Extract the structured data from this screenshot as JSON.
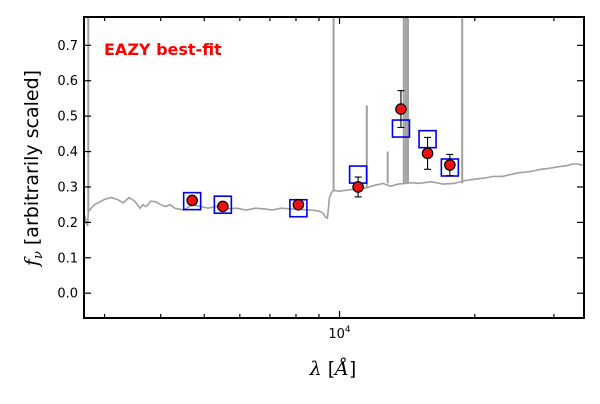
{
  "chart_data": {
    "type": "scatter",
    "title": "EAZY best-fit",
    "title_color": "#ff0000",
    "xlabel": "λ [Å]",
    "ylabel": "f_ν [arbitrarily scaled]",
    "x_scale": "log",
    "xlim": [
      2700,
      35000
    ],
    "ylim": [
      -0.07,
      0.78
    ],
    "yticks": [
      0.0,
      0.1,
      0.2,
      0.3,
      0.4,
      0.5,
      0.6,
      0.7
    ],
    "ytick_labels": [
      "0.0",
      "0.1",
      "0.2",
      "0.3",
      "0.4",
      "0.5",
      "0.6",
      "0.7"
    ],
    "xtick_label": {
      "base": "10",
      "exponent": "4",
      "value": 10000
    },
    "x_minor_ticks": [
      3000,
      4000,
      5000,
      6000,
      7000,
      8000,
      9000,
      20000,
      30000
    ],
    "colors": {
      "sed": "#a0a0a0",
      "model": "#0000ee",
      "obs_fill": "#ee1111",
      "obs_edge": "#000000",
      "errorbar": "#000000"
    },
    "series": [
      {
        "name": "best-fit SED",
        "kind": "line",
        "x": [
          2710,
          2730,
          2750,
          2760,
          2800,
          2850,
          2900,
          2950,
          3000,
          3100,
          3200,
          3300,
          3400,
          3500,
          3600,
          3650,
          3700,
          3750,
          3800,
          3900,
          4000,
          4100,
          4200,
          4300,
          4500,
          4700,
          4900,
          5100,
          5300,
          5600,
          5900,
          6200,
          6500,
          6800,
          7100,
          7400,
          7800,
          8200,
          8600,
          8900,
          9100,
          9200,
          9300,
          9400,
          9500,
          9600,
          9700,
          10000,
          10500,
          11000,
          11500,
          12000,
          12500,
          13000,
          13500,
          14000,
          14500,
          15000,
          16000,
          17000,
          18000,
          19000,
          20000,
          21000,
          22000,
          23000,
          24000,
          25000,
          26000,
          27000,
          28000,
          29000,
          30000,
          31000,
          32000,
          33000,
          34000,
          35000
        ],
        "y": [
          0.22,
          0.2,
          0.19,
          0.23,
          0.24,
          0.25,
          0.255,
          0.26,
          0.265,
          0.27,
          0.265,
          0.255,
          0.27,
          0.26,
          0.24,
          0.25,
          0.245,
          0.25,
          0.26,
          0.258,
          0.25,
          0.245,
          0.25,
          0.24,
          0.235,
          0.25,
          0.245,
          0.24,
          0.245,
          0.238,
          0.24,
          0.235,
          0.24,
          0.238,
          0.235,
          0.24,
          0.238,
          0.236,
          0.235,
          0.233,
          0.23,
          0.225,
          0.215,
          0.212,
          0.27,
          0.285,
          0.29,
          0.288,
          0.292,
          0.295,
          0.298,
          0.305,
          0.31,
          0.302,
          0.308,
          0.31,
          0.312,
          0.31,
          0.315,
          0.308,
          0.31,
          0.318,
          0.322,
          0.325,
          0.33,
          0.33,
          0.335,
          0.34,
          0.342,
          0.345,
          0.35,
          0.352,
          0.355,
          0.358,
          0.36,
          0.365,
          0.365,
          0.36
        ]
      },
      {
        "name": "SED emission lines",
        "kind": "spikes",
        "x": [
          2760,
          9700,
          11500,
          12800,
          13900,
          14050,
          14200,
          18750
        ],
        "y_base": [
          0.23,
          0.29,
          0.298,
          0.31,
          0.31,
          0.312,
          0.312,
          0.31
        ],
        "y_top": [
          0.78,
          0.78,
          0.53,
          0.4,
          0.78,
          0.78,
          0.78,
          0.78
        ]
      },
      {
        "name": "model photometry",
        "kind": "marker-square",
        "x": [
          4700,
          5500,
          8100,
          11000,
          13700,
          15700,
          17600
        ],
        "y": [
          0.26,
          0.25,
          0.24,
          0.335,
          0.465,
          0.435,
          0.355
        ]
      },
      {
        "name": "observed photometry",
        "kind": "marker-circle-errorbar",
        "x": [
          4700,
          5500,
          8100,
          11000,
          13700,
          15700,
          17600
        ],
        "y": [
          0.262,
          0.245,
          0.25,
          0.3,
          0.52,
          0.395,
          0.362
        ],
        "yerr": [
          0.008,
          0.008,
          0.01,
          0.028,
          0.052,
          0.045,
          0.03
        ]
      }
    ]
  }
}
